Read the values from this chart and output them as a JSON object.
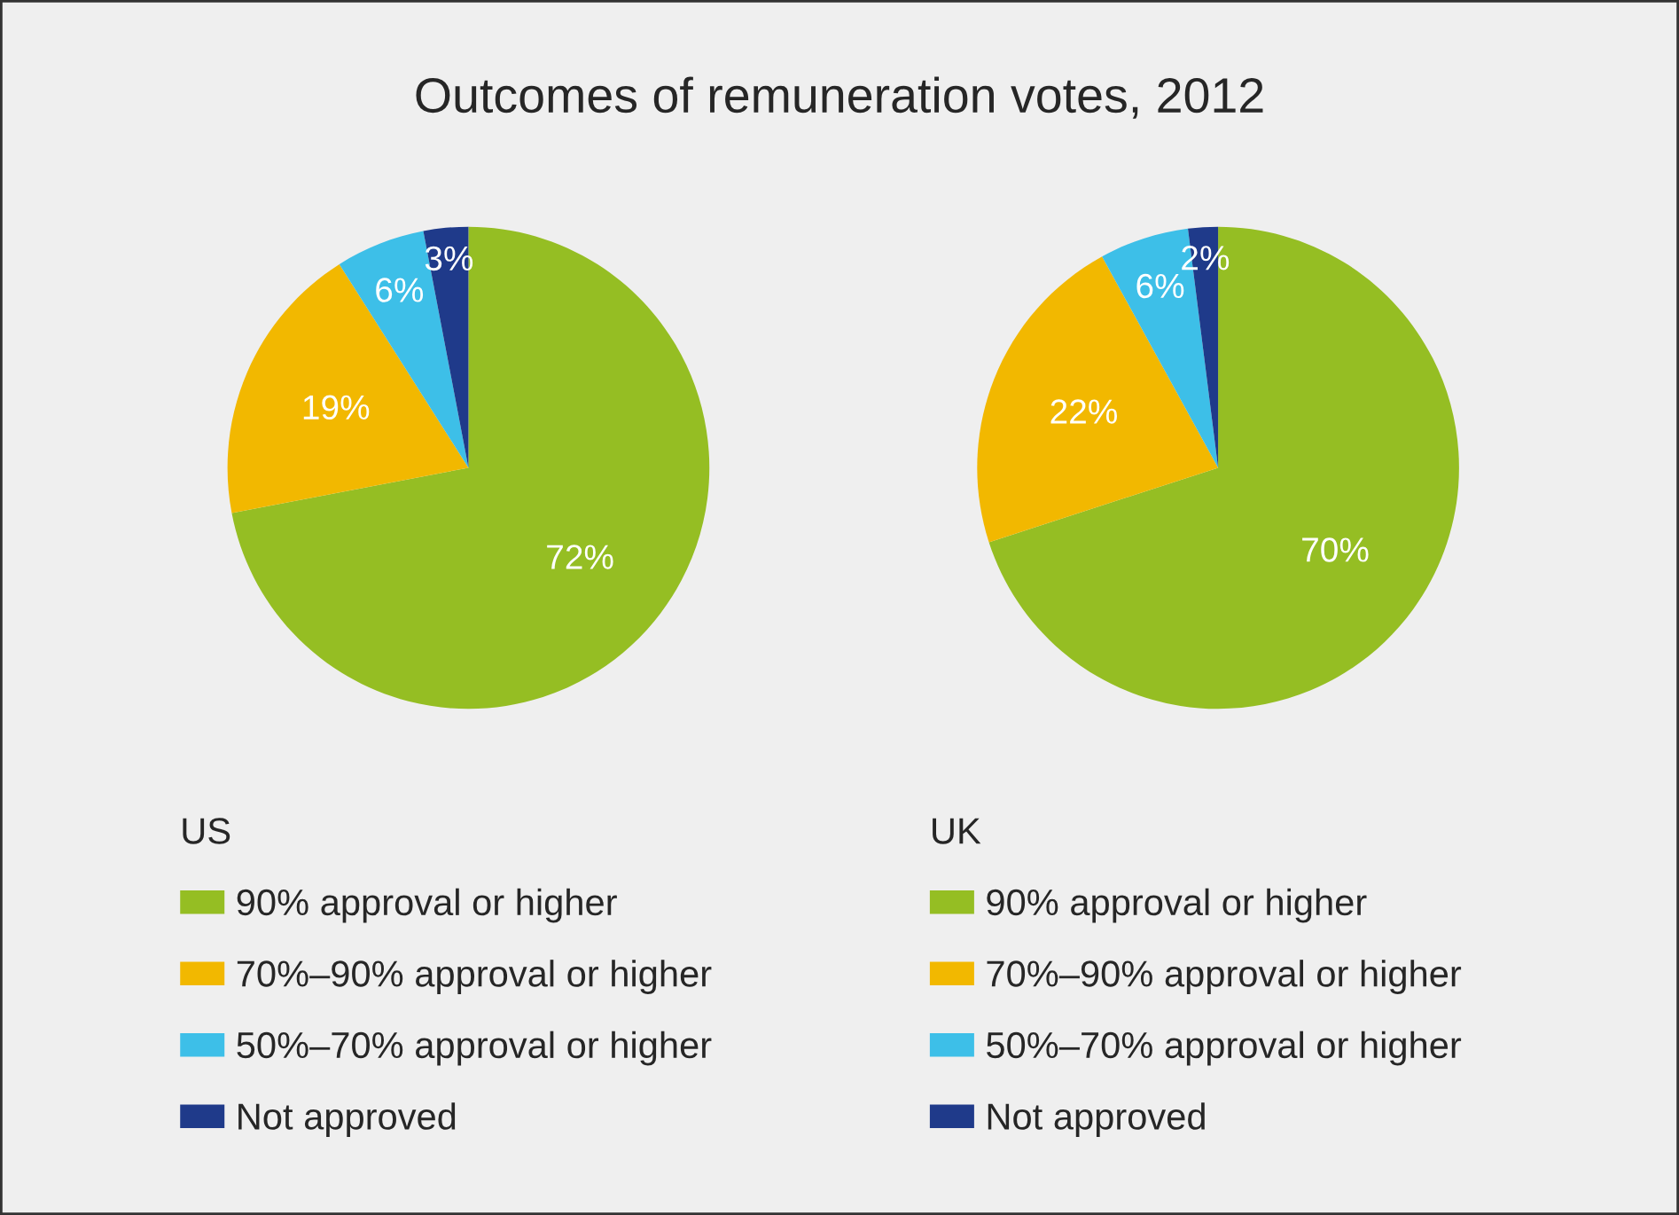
{
  "chart_data": [
    {
      "type": "pie",
      "title": "Outcomes of remuneration votes, 2012",
      "legend_title": "US",
      "legend": "bottom",
      "categories": [
        "90% approval or higher",
        "70%–90% approval or higher",
        "50%–70% approval or higher",
        "Not approved"
      ],
      "values": [
        72,
        19,
        6,
        3
      ],
      "value_labels": [
        "72%",
        "19%",
        "6%",
        "3%"
      ],
      "colors": [
        "#95be23",
        "#f2b800",
        "#3dbfe8",
        "#1f3a8a"
      ]
    },
    {
      "type": "pie",
      "legend_title": "UK",
      "legend": "bottom",
      "categories": [
        "90% approval or higher",
        "70%–90% approval or higher",
        "50%–70% approval or higher",
        "Not approved"
      ],
      "values": [
        70,
        22,
        6,
        2
      ],
      "value_labels": [
        "70%",
        "22%",
        "6%",
        "2%"
      ],
      "colors": [
        "#95be23",
        "#f2b800",
        "#3dbfe8",
        "#1f3a8a"
      ]
    }
  ]
}
